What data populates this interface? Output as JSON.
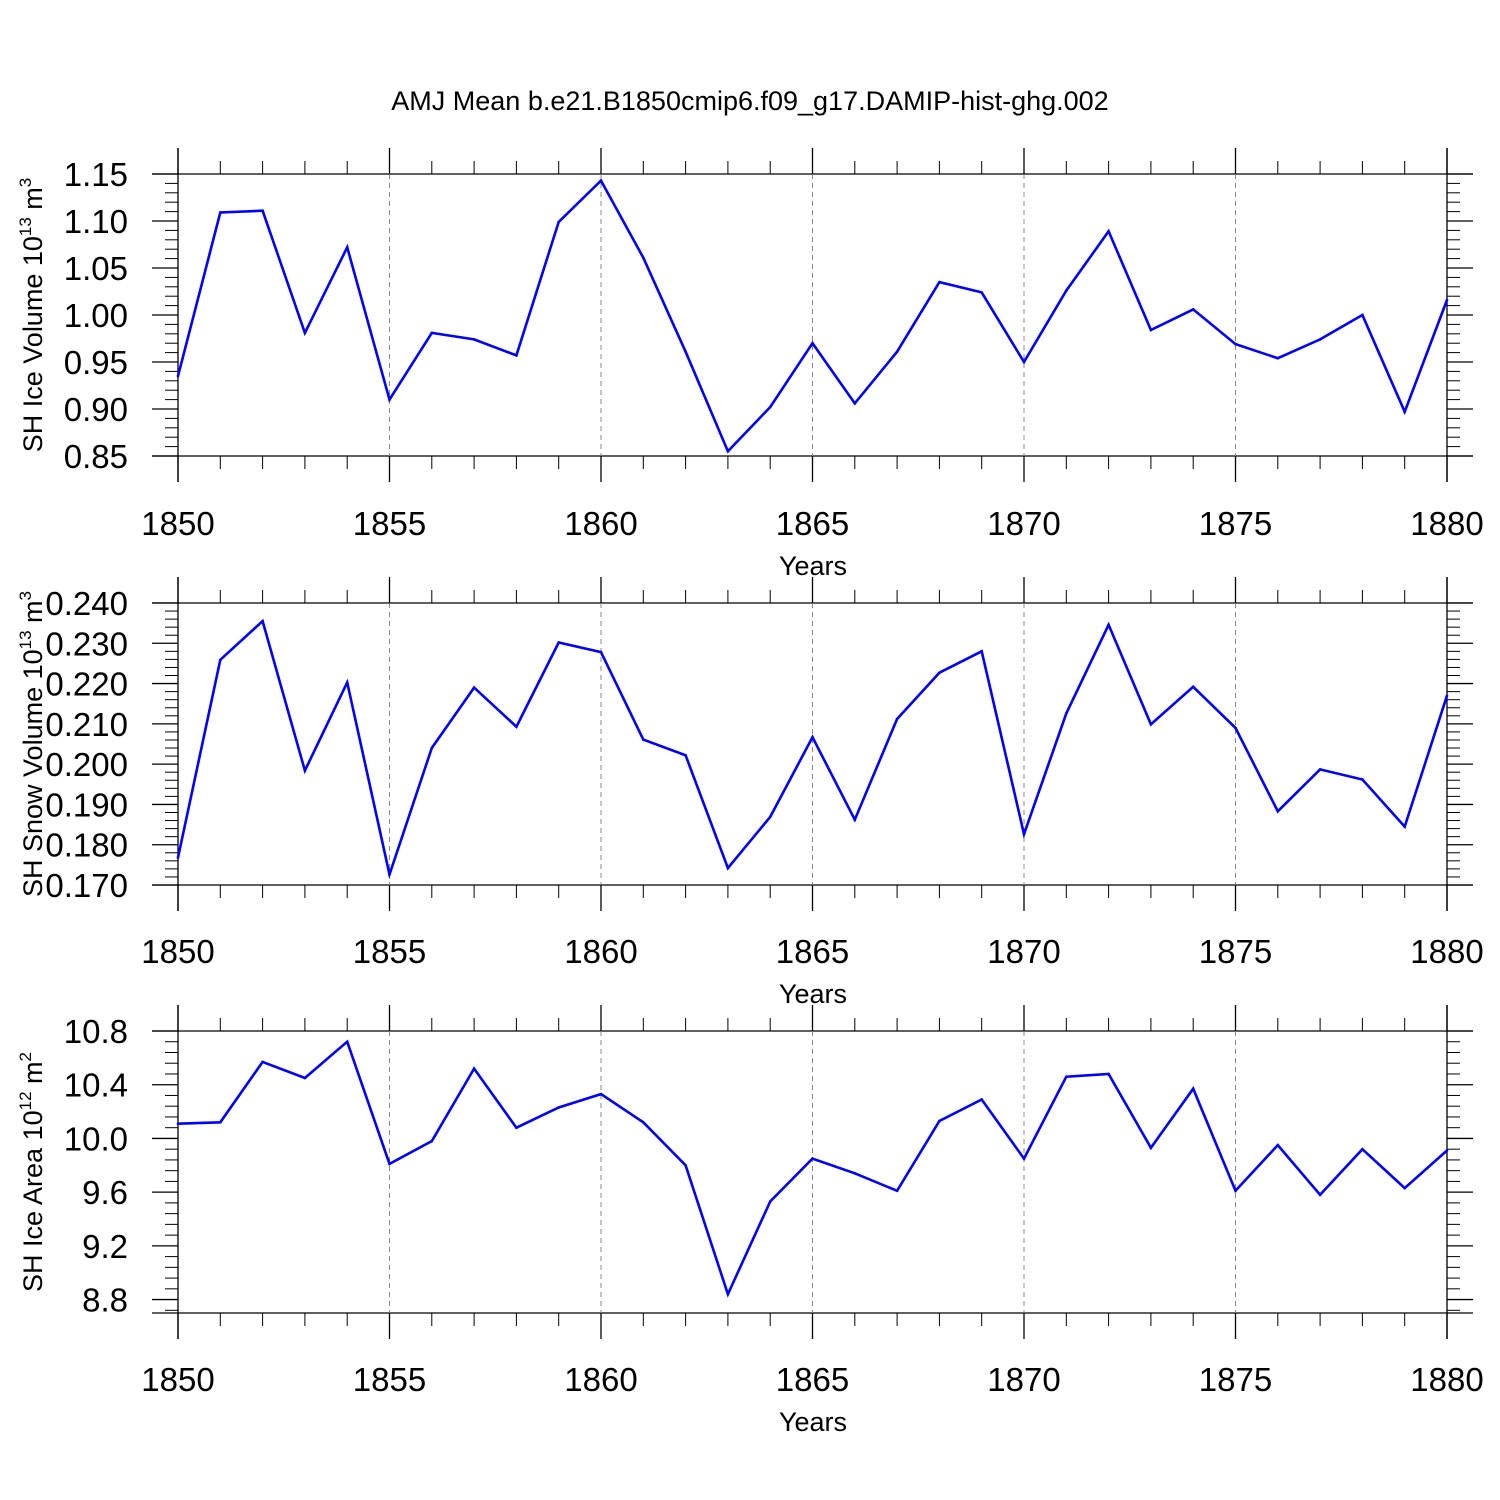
{
  "chart_data": {
    "title": "AMJ Mean b.e21.B1850cmip6.f09_g17.DAMIP-hist-ghg.002",
    "x": [
      1850,
      1851,
      1852,
      1853,
      1854,
      1855,
      1856,
      1857,
      1858,
      1859,
      1860,
      1861,
      1862,
      1863,
      1864,
      1865,
      1866,
      1867,
      1868,
      1869,
      1870,
      1871,
      1872,
      1873,
      1874,
      1875,
      1876,
      1877,
      1878,
      1879,
      1880
    ],
    "panels": [
      {
        "type": "line",
        "ylabel_main": "SH Ice Volume 10",
        "ylabel_exp": "13",
        "ylabel_unit": " m",
        "ylabel_unit_exp": "3",
        "xlabel": "Years",
        "xlim": [
          1850,
          1880
        ],
        "xticks": [
          "1850",
          "1855",
          "1860",
          "1865",
          "1870",
          "1875",
          "1880"
        ],
        "ylim": [
          0.85,
          1.15
        ],
        "yticks": [
          "0.85",
          "0.90",
          "0.95",
          "1.00",
          "1.05",
          "1.10",
          "1.15"
        ],
        "series_color": "#0000ff",
        "values": [
          0.935,
          1.109,
          1.111,
          0.981,
          1.072,
          0.91,
          0.981,
          0.974,
          0.957,
          1.099,
          1.143,
          1.061,
          0.961,
          0.855,
          0.902,
          0.97,
          0.906,
          0.961,
          1.035,
          1.024,
          0.95,
          1.026,
          1.089,
          0.984,
          1.006,
          0.969,
          0.954,
          0.974,
          1.0,
          0.897,
          1.016
        ]
      },
      {
        "type": "line",
        "ylabel_main": "SH Snow Volume 10",
        "ylabel_exp": "13",
        "ylabel_unit": " m",
        "ylabel_unit_exp": "3",
        "xlabel": "Years",
        "xlim": [
          1850,
          1880
        ],
        "xticks": [
          "1850",
          "1855",
          "1860",
          "1865",
          "1870",
          "1875",
          "1880"
        ],
        "ylim": [
          0.17,
          0.24
        ],
        "yticks": [
          "0.170",
          "0.180",
          "0.190",
          "0.200",
          "0.210",
          "0.220",
          "0.230",
          "0.240"
        ],
        "series_color": "#0000ff",
        "values": [
          0.1768,
          0.2259,
          0.2355,
          0.1984,
          0.2203,
          0.1726,
          0.204,
          0.219,
          0.2093,
          0.2302,
          0.2278,
          0.2061,
          0.2022,
          0.1742,
          0.1869,
          0.2067,
          0.1862,
          0.2112,
          0.2227,
          0.228,
          0.1826,
          0.2126,
          0.2346,
          0.2099,
          0.2192,
          0.209,
          0.1883,
          0.1987,
          0.1962,
          0.1845,
          0.217
        ]
      },
      {
        "type": "line",
        "ylabel_main": "SH Ice Area 10",
        "ylabel_exp": "12",
        "ylabel_unit": " m",
        "ylabel_unit_exp": "2",
        "xlabel": "Years",
        "xlim": [
          1850,
          1880
        ],
        "xticks": [
          "1850",
          "1855",
          "1860",
          "1865",
          "1870",
          "1875",
          "1880"
        ],
        "ylim": [
          8.7,
          10.8
        ],
        "yticks": [
          "8.8",
          "9.2",
          "9.6",
          "10.0",
          "10.4",
          "10.8"
        ],
        "series_color": "#0000ff",
        "values": [
          10.11,
          10.12,
          10.57,
          10.45,
          10.72,
          9.81,
          9.98,
          10.52,
          10.08,
          10.23,
          10.33,
          10.12,
          9.8,
          8.84,
          9.53,
          9.85,
          9.74,
          9.61,
          10.13,
          10.29,
          9.85,
          10.46,
          10.48,
          9.93,
          10.37,
          9.61,
          9.95,
          9.58,
          9.92,
          9.63,
          9.91
        ]
      }
    ]
  }
}
